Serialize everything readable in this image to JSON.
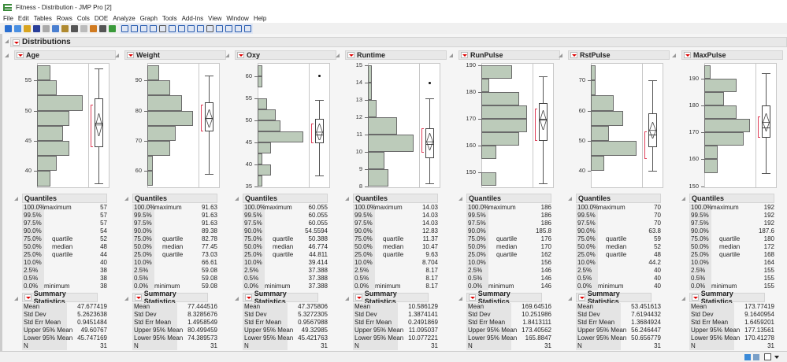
{
  "window": {
    "title": "Fitness - Distribution - JMP Pro [2]"
  },
  "menu": [
    "File",
    "Edit",
    "Tables",
    "Rows",
    "Cols",
    "DOE",
    "Analyze",
    "Graph",
    "Tools",
    "Add-Ins",
    "View",
    "Window",
    "Help"
  ],
  "toolbar_icons": [
    "new-table-icon",
    "new-script-icon",
    "open-icon",
    "save-icon",
    "cut-icon",
    "copy-icon",
    "paste-icon",
    "journal-icon",
    "lock-icon",
    "data-table-icon",
    "column-icon",
    "add-icon",
    "arrow-icon",
    "help-icon",
    "grabber-icon",
    "zoom-in-icon",
    "hand-icon",
    "brush-icon",
    "lasso-icon",
    "magnifier-icon",
    "crosshair-icon",
    "line-icon",
    "text-icon",
    "annotate-icon",
    "polygon-icon",
    "oval-icon"
  ],
  "report": {
    "title": "Distributions",
    "quantiles_title": "Quantiles",
    "summary_title": "Summary Statistics",
    "quantile_levels": [
      "100.0%",
      "99.5%",
      "97.5%",
      "90.0%",
      "75.0%",
      "50.0%",
      "25.0%",
      "10.0%",
      "2.5%",
      "0.5%",
      "0.0%"
    ],
    "quantile_notes": [
      "maximum",
      "",
      "",
      "",
      "quartile",
      "median",
      "quartile",
      "",
      "",
      "",
      "minimum"
    ],
    "summary_labels": [
      "Mean",
      "Std Dev",
      "Std Err Mean",
      "Upper 95% Mean",
      "Lower 95% Mean",
      "N"
    ]
  },
  "colors": {
    "bar": "#bccbba",
    "shortest_half": "#e0405a"
  },
  "chart_data": [
    {
      "type": "bar",
      "title": "Age",
      "bin_start": 37.5,
      "bin_width": 2.5,
      "counts": [
        2,
        3,
        5,
        4,
        5,
        7,
        3,
        2
      ],
      "ylim": [
        37.2,
        57.9
      ],
      "ticks": [
        40,
        45,
        50,
        55
      ],
      "quantiles": [
        "57",
        "57",
        "57",
        "54",
        "52",
        "48",
        "44",
        "40",
        "38",
        "38",
        "38"
      ],
      "summary": [
        "47.677419",
        "5.2623638",
        "0.9451484",
        "49.60767",
        "45.747169",
        "31"
      ],
      "box": {
        "min": 38,
        "q1": 44,
        "median": 48,
        "q3": 52,
        "max": 57,
        "mean": 47.677,
        "ci": [
          45.747,
          49.608
        ],
        "shortest_half": [
          44,
          51
        ],
        "outliers": []
      }
    },
    {
      "type": "bar",
      "title": "Weight",
      "bin_start": 55,
      "bin_width": 5,
      "counts": [
        1,
        1,
        4,
        5,
        8,
        6,
        4,
        2
      ],
      "ylim": [
        54.3,
        95.8
      ],
      "ticks": [
        60,
        70,
        80,
        90
      ],
      "quantiles": [
        "91.63",
        "91.63",
        "91.63",
        "89.38",
        "82.78",
        "77.45",
        "73.03",
        "66.61",
        "59.08",
        "59.08",
        "59.08"
      ],
      "summary": [
        "77.444516",
        "8.3285676",
        "1.4958549",
        "80.499459",
        "74.389573",
        "31"
      ],
      "box": {
        "min": 59.08,
        "q1": 73.03,
        "median": 77.45,
        "q3": 82.78,
        "max": 91.63,
        "mean": 77.445,
        "ci": [
          74.39,
          80.5
        ],
        "shortest_half": [
          73,
          82
        ],
        "outliers": []
      }
    },
    {
      "type": "bar",
      "title": "Oxy",
      "bin_start": 35,
      "bin_width": 2.5,
      "counts": [
        1,
        3,
        1,
        3,
        10,
        5,
        4,
        2,
        0,
        1,
        1
      ],
      "ylim": [
        34.6,
        63
      ],
      "ticks": [
        35,
        40,
        45,
        50,
        55,
        60
      ],
      "quantiles": [
        "60.055",
        "60.055",
        "60.055",
        "54.5594",
        "50.388",
        "46.774",
        "44.811",
        "39.414",
        "37.388",
        "37.388",
        "37.388"
      ],
      "summary": [
        "47.375806",
        "5.3272305",
        "0.9567988",
        "49.32985",
        "45.421763",
        "31"
      ],
      "box": {
        "min": 37.388,
        "q1": 44.811,
        "median": 46.774,
        "q3": 50.388,
        "max": 54.6,
        "mean": 47.376,
        "ci": [
          45.42,
          49.33
        ],
        "shortest_half": [
          44.7,
          49.2
        ],
        "outliers": [
          60.055
        ]
      }
    },
    {
      "type": "bar",
      "title": "Runtime",
      "bin_start": 8,
      "bin_width": 1,
      "counts": [
        5,
        4,
        11,
        7,
        2,
        1,
        1
      ],
      "ylim": [
        7.9,
        15.15
      ],
      "ticks": [
        8,
        9,
        10,
        11,
        12,
        13,
        14,
        15
      ],
      "quantiles": [
        "14.03",
        "14.03",
        "14.03",
        "12.83",
        "11.37",
        "10.47",
        "9.63",
        "8.704",
        "8.17",
        "8.17",
        "8.17"
      ],
      "summary": [
        "10.586129",
        "1.3874141",
        "0.2491869",
        "11.095037",
        "10.077221",
        "31"
      ],
      "box": {
        "min": 8.17,
        "q1": 9.63,
        "median": 10.47,
        "q3": 11.37,
        "max": 13.08,
        "mean": 10.586,
        "ci": [
          10.077,
          11.095
        ],
        "shortest_half": [
          9.94,
          11.38
        ],
        "outliers": [
          14.03
        ]
      }
    },
    {
      "type": "bar",
      "title": "RunPulse",
      "bin_start": 145,
      "bin_width": 5,
      "counts": [
        2,
        0,
        2,
        5,
        6,
        6,
        5,
        1,
        4
      ],
      "ylim": [
        144.2,
        191
      ],
      "ticks": [
        150,
        160,
        170,
        180,
        190
      ],
      "quantiles": [
        "186",
        "186",
        "186",
        "185.8",
        "176",
        "170",
        "162",
        "156",
        "146",
        "146",
        "146"
      ],
      "summary": [
        "169.64516",
        "10.251986",
        "1.8413111",
        "173.40562",
        "165.8847",
        "31"
      ],
      "box": {
        "min": 146,
        "q1": 162,
        "median": 170,
        "q3": 176,
        "max": 186,
        "mean": 169.645,
        "ci": [
          165.885,
          173.406
        ],
        "shortest_half": [
          162,
          174
        ],
        "outliers": []
      }
    },
    {
      "type": "bar",
      "title": "RstPulse",
      "bin_start": 40,
      "bin_width": 5,
      "counts": [
        3,
        10,
        4,
        7,
        5,
        1,
        1
      ],
      "ylim": [
        34.3,
        75.8
      ],
      "ticks": [
        40,
        50,
        60,
        70
      ],
      "quantiles": [
        "70",
        "70",
        "70",
        "63.8",
        "59",
        "52",
        "48",
        "44.2",
        "40",
        "40",
        "40"
      ],
      "summary": [
        "53.451613",
        "7.6194432",
        "1.3684924",
        "56.246447",
        "50.656779",
        "31"
      ],
      "box": {
        "min": 40,
        "q1": 48,
        "median": 52,
        "q3": 59,
        "max": 70,
        "mean": 53.452,
        "ci": [
          50.657,
          56.246
        ],
        "shortest_half": [
          44,
          53
        ],
        "outliers": []
      }
    },
    {
      "type": "bar",
      "title": "MaxPulse",
      "bin_start": 155,
      "bin_width": 5,
      "counts": [
        2,
        2,
        6,
        7,
        5,
        3,
        5,
        1
      ],
      "ylim": [
        149.3,
        195.9
      ],
      "ticks": [
        150,
        160,
        170,
        180,
        190
      ],
      "quantiles": [
        "192",
        "192",
        "192",
        "187.6",
        "180",
        "172",
        "168",
        "164",
        "155",
        "155",
        "155"
      ],
      "summary": [
        "173.77419",
        "9.1640954",
        "1.6459201",
        "177.13561",
        "170.41278",
        "31"
      ],
      "box": {
        "min": 155,
        "q1": 168,
        "median": 172,
        "q3": 180,
        "max": 192,
        "mean": 173.774,
        "ci": [
          170.413,
          177.136
        ],
        "shortest_half": [
          168,
          176
        ],
        "outliers": []
      }
    }
  ]
}
